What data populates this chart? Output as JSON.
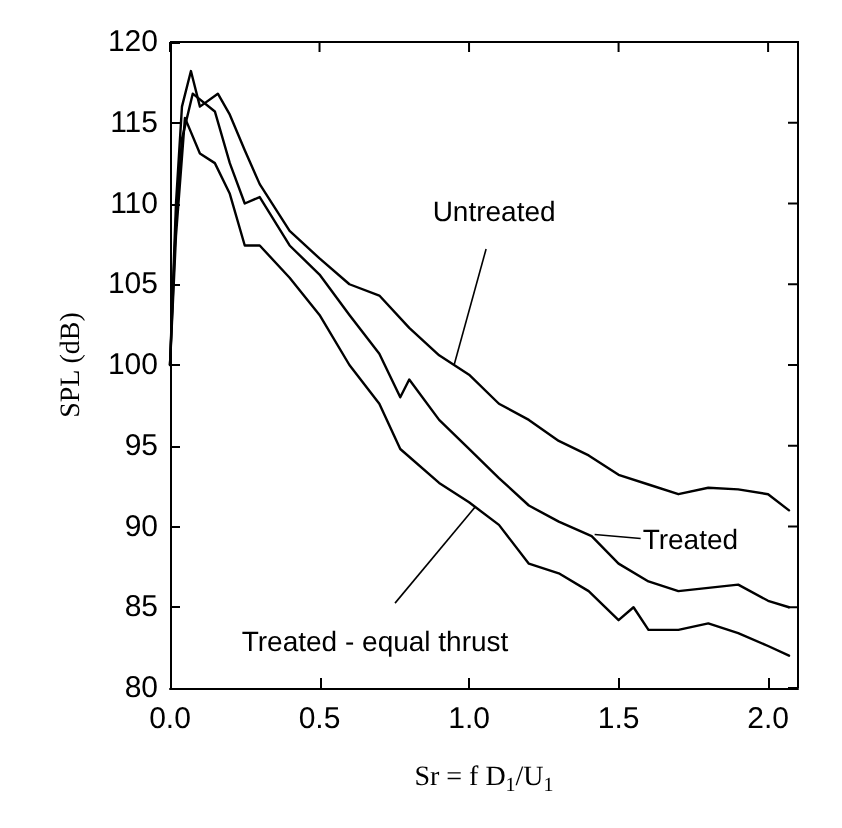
{
  "chart_data": {
    "type": "line",
    "xlabel": "Sr = f D$_{1}$/U$_{1}$",
    "ylabel": "SPL (dB)",
    "xlim": [
      0,
      2.1
    ],
    "ylim": [
      80,
      120
    ],
    "xticks": [
      {
        "value": 0,
        "label": "0.0"
      },
      0.5,
      {
        "value": 1,
        "label": "1.0"
      },
      1.5,
      {
        "value": 2,
        "label": "2.0"
      }
    ],
    "yticks": [
      80,
      85,
      90,
      95,
      100,
      105,
      110,
      115,
      120
    ],
    "grid": false,
    "marker": "none",
    "line_style": "solid",
    "series": [
      {
        "color": "#000000",
        "x": [
          0,
          0.02,
          0.04,
          0.07,
          0.1,
          0.16,
          0.2,
          0.25,
          0.3,
          0.4,
          0.5,
          0.6,
          0.7,
          0.8,
          0.9,
          1.0,
          1.1,
          1.2,
          1.3,
          1.4,
          1.5,
          1.6,
          1.7,
          1.8,
          1.9,
          2.0,
          2.07
        ],
        "values": [
          100,
          110,
          116,
          118.2,
          116,
          116.8,
          115.5,
          113.3,
          111.2,
          108.3,
          106.6,
          105,
          104.3,
          102.3,
          100.6,
          99.4,
          97.6,
          96.6,
          95.3,
          94.4,
          93.2,
          92.6,
          92,
          92.4,
          92.3,
          92,
          91
        ]
      },
      {
        "color": "#000000",
        "x": [
          0,
          0.02,
          0.04,
          0.076,
          0.15,
          0.2,
          0.25,
          0.3,
          0.4,
          0.5,
          0.6,
          0.7,
          0.77,
          0.8,
          0.9,
          1.0,
          1.1,
          1.2,
          1.3,
          1.41,
          1.5,
          1.6,
          1.7,
          1.8,
          1.9,
          2.0,
          2.07
        ],
        "values": [
          100,
          109,
          114,
          116.8,
          115.7,
          112.5,
          110,
          110.4,
          107.4,
          105.6,
          103.1,
          100.7,
          98,
          99.1,
          96.6,
          94.8,
          93,
          91.3,
          90.3,
          89.4,
          87.7,
          86.6,
          86,
          86.2,
          86.4,
          85.4,
          85
        ]
      },
      {
        "color": "#000000",
        "x": [
          0,
          0.02,
          0.05,
          0.1,
          0.15,
          0.2,
          0.25,
          0.3,
          0.4,
          0.5,
          0.6,
          0.7,
          0.77,
          0.9,
          1.0,
          1.1,
          1.2,
          1.3,
          1.4,
          1.5,
          1.55,
          1.6,
          1.7,
          1.8,
          1.9,
          2.0,
          2.07
        ],
        "values": [
          100,
          108,
          115.3,
          113.1,
          112.5,
          110.6,
          107.4,
          107.4,
          105.4,
          103.1,
          100,
          97.6,
          94.8,
          92.7,
          91.5,
          90.1,
          87.7,
          87.1,
          86,
          84.2,
          85,
          83.6,
          83.6,
          84,
          83.4,
          82.6,
          82
        ]
      }
    ],
    "annotations": [
      {
        "text": "Untreated",
        "x": 0.95,
        "y": 100
      },
      {
        "text": "Treated",
        "x": 1.42,
        "y": 89.5
      },
      {
        "text": "Treated - equal thrust",
        "x": 1.02,
        "y": 91.2
      }
    ]
  }
}
